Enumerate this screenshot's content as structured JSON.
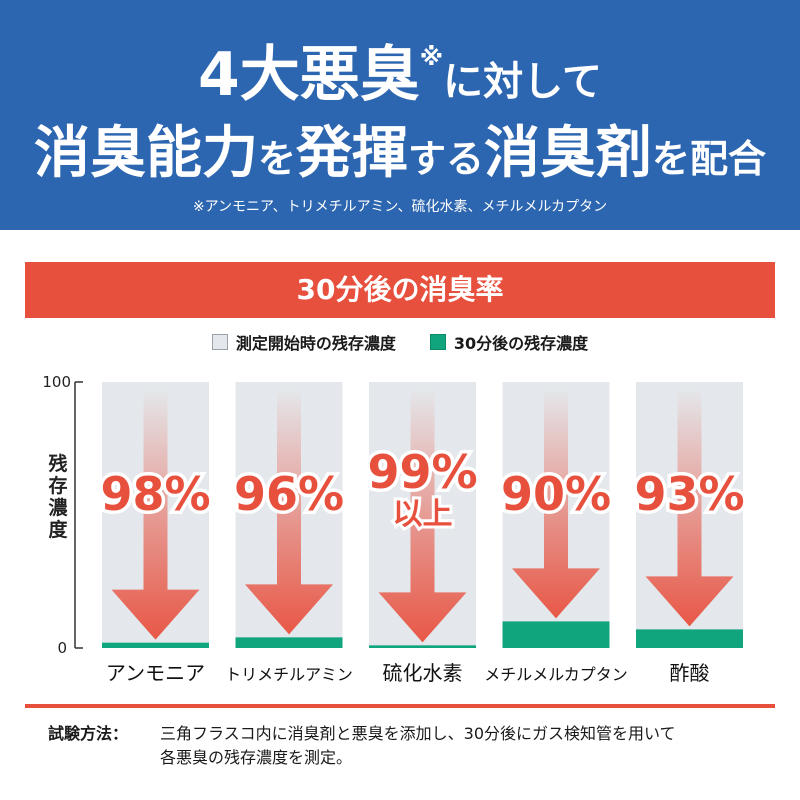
{
  "banner": {
    "headline_a": "4大悪臭",
    "note_mark": "※",
    "headline_b": "に対して",
    "line2_a": "消臭能力",
    "line2_b": "を",
    "line2_c": "発揮",
    "line2_d": "する",
    "line2_e": "消臭剤",
    "line2_f": "を配合",
    "footnote": "※アンモニア、トリメチルアミン、硫化水素、メチルメルカプタン"
  },
  "legend": {
    "initial": "測定開始時の残存濃度",
    "after": "30分後の残存濃度"
  },
  "colors": {
    "banner_blue": "#2d66b0",
    "accent_red": "#e8503e",
    "after_green": "#10a57c",
    "initial_gray": "#e4e8ec"
  },
  "chart_data": {
    "type": "bar",
    "title": "30分後の消臭率",
    "ylabel": "残存濃度",
    "yticks": [
      "100",
      "0"
    ],
    "ylim": [
      0,
      100
    ],
    "categories": [
      "アンモニア",
      "トリメチルアミン",
      "硫化水素",
      "メチルメルカプタン",
      "酢酸"
    ],
    "series": [
      {
        "name": "測定開始時の残存濃度",
        "values": [
          100,
          100,
          100,
          100,
          100
        ]
      },
      {
        "name": "30分後の残存濃度",
        "values": [
          2,
          4,
          1,
          10,
          7
        ]
      }
    ],
    "reduction_labels": [
      "98%",
      "96%",
      "99%",
      "90%",
      "93%"
    ],
    "reduction_sublabels": [
      "",
      "",
      "以上",
      "",
      ""
    ]
  },
  "method": {
    "label": "試験方法：",
    "line1": "三角フラスコ内に消臭剤と悪臭を添加し、30分後にガス検知管を用いて",
    "line2": "各悪臭の残存濃度を測定。"
  }
}
